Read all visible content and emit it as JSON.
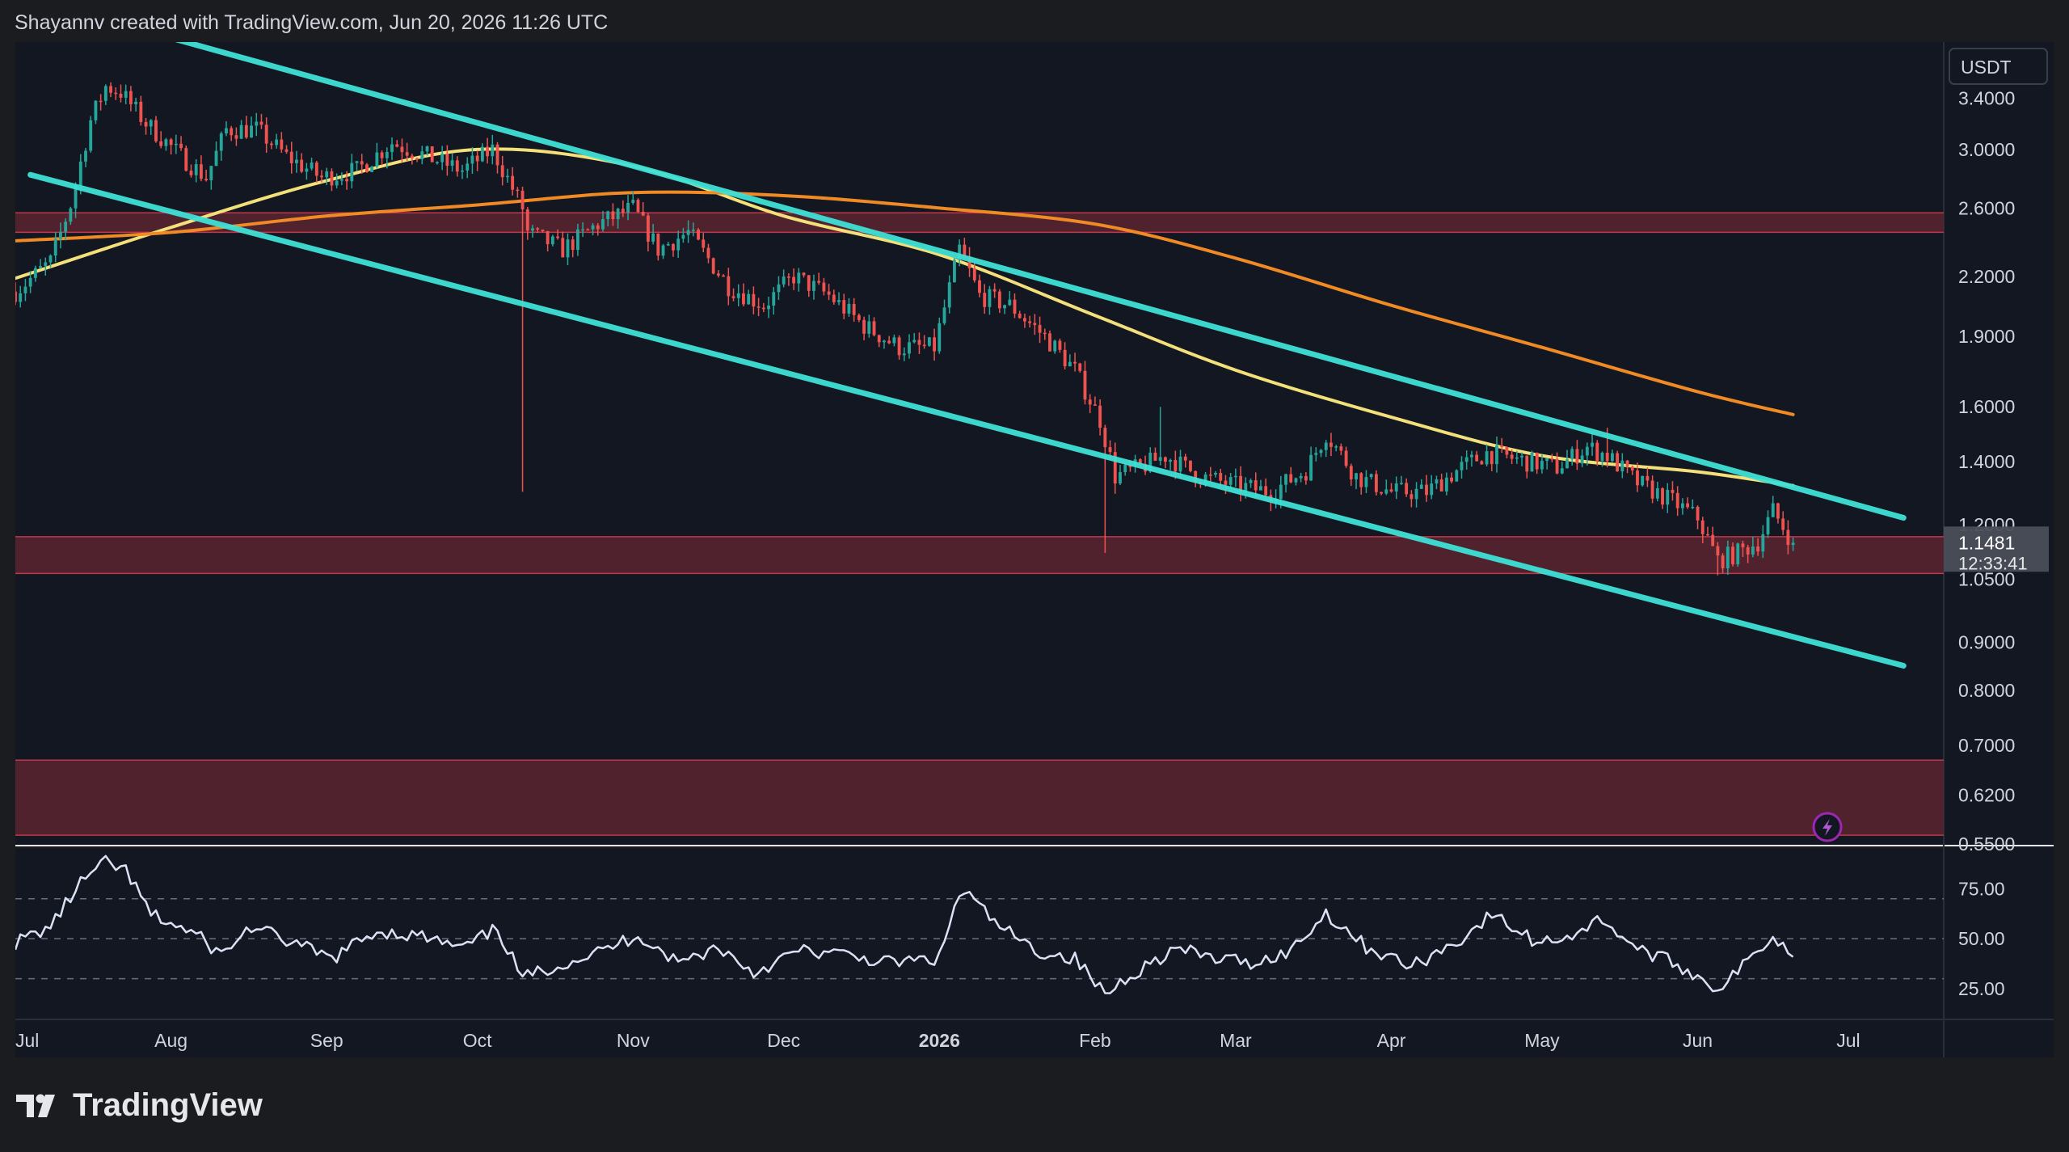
{
  "header": {
    "attribution": "Shayannv created with TradingView.com, Jun 20, 2026 11:26 UTC"
  },
  "branding": {
    "logo_text": "TradingView"
  },
  "colors": {
    "background": "#1b1c20",
    "pane": "#131722",
    "candle_up": "#26a69a",
    "candle_down": "#ef5350",
    "channel": "#3ee0d6",
    "ma_yellow": "#f3e07a",
    "ma_orange": "#f08a24",
    "zone": "#5a2530",
    "rsi_line": "#dbe2f5"
  },
  "chart_data": [
    {
      "type": "candlestick",
      "symbol_quote": "USDT",
      "y_scale": "log",
      "ylim": [
        0.55,
        3.9
      ],
      "y_ticks": [
        3.4,
        3.0,
        2.6,
        2.2,
        1.9,
        1.6,
        1.4,
        1.2,
        1.05,
        0.9,
        0.8,
        0.7,
        0.62,
        0.55
      ],
      "y_tick_labels": [
        "3.4000",
        "3.0000",
        "2.6000",
        "2.2000",
        "1.9000",
        "1.6000",
        "1.4000",
        "1.2000",
        "1.0500",
        "0.9000",
        "0.8000",
        "0.7000",
        "0.6200",
        "0.5500"
      ],
      "x_range": [
        "2025-07-01",
        "2026-07-20"
      ],
      "x_ticks": [
        {
          "date": "2025-07-01",
          "label": "Jul",
          "bold": false
        },
        {
          "date": "2025-08-01",
          "label": "Aug",
          "bold": false
        },
        {
          "date": "2025-09-01",
          "label": "Sep",
          "bold": false
        },
        {
          "date": "2025-10-01",
          "label": "Oct",
          "bold": false
        },
        {
          "date": "2025-11-01",
          "label": "Nov",
          "bold": false
        },
        {
          "date": "2025-12-01",
          "label": "Dec",
          "bold": false
        },
        {
          "date": "2026-01-01",
          "label": "2026",
          "bold": true
        },
        {
          "date": "2026-02-01",
          "label": "Feb",
          "bold": false
        },
        {
          "date": "2026-03-01",
          "label": "Mar",
          "bold": false
        },
        {
          "date": "2026-04-01",
          "label": "Apr",
          "bold": false
        },
        {
          "date": "2026-05-01",
          "label": "May",
          "bold": false
        },
        {
          "date": "2026-06-01",
          "label": "Jun",
          "bold": false
        },
        {
          "date": "2026-07-01",
          "label": "Jul",
          "bold": false
        }
      ],
      "last_price": {
        "label": "1.1481",
        "countdown": "12:33:41",
        "value": 1.1481
      },
      "price_path": [
        [
          "2025-07-01",
          2.12
        ],
        [
          "2025-07-08",
          2.28
        ],
        [
          "2025-07-12",
          2.62
        ],
        [
          "2025-07-16",
          3.22
        ],
        [
          "2025-07-19",
          3.5
        ],
        [
          "2025-07-22",
          3.45
        ],
        [
          "2025-07-27",
          3.2
        ],
        [
          "2025-08-03",
          2.95
        ],
        [
          "2025-08-08",
          2.8
        ],
        [
          "2025-08-12",
          3.15
        ],
        [
          "2025-08-18",
          3.15
        ],
        [
          "2025-08-24",
          2.95
        ],
        [
          "2025-08-31",
          2.8
        ],
        [
          "2025-09-07",
          2.85
        ],
        [
          "2025-09-14",
          3.05
        ],
        [
          "2025-09-21",
          2.95
        ],
        [
          "2025-09-28",
          2.85
        ],
        [
          "2025-10-04",
          3.0
        ],
        [
          "2025-10-10",
          2.6
        ],
        [
          "2025-10-11",
          2.45
        ],
        [
          "2025-10-18",
          2.35
        ],
        [
          "2025-10-25",
          2.5
        ],
        [
          "2025-11-01",
          2.6
        ],
        [
          "2025-11-06",
          2.35
        ],
        [
          "2025-11-12",
          2.45
        ],
        [
          "2025-11-20",
          2.15
        ],
        [
          "2025-11-27",
          2.05
        ],
        [
          "2025-12-03",
          2.2
        ],
        [
          "2025-12-10",
          2.1
        ],
        [
          "2025-12-17",
          1.95
        ],
        [
          "2025-12-24",
          1.85
        ],
        [
          "2025-12-31",
          1.85
        ],
        [
          "2026-01-05",
          2.35
        ],
        [
          "2026-01-09",
          2.1
        ],
        [
          "2026-01-15",
          2.05
        ],
        [
          "2026-01-22",
          1.9
        ],
        [
          "2026-01-28",
          1.75
        ],
        [
          "2026-02-02",
          1.55
        ],
        [
          "2026-02-05",
          1.35
        ],
        [
          "2026-02-10",
          1.38
        ],
        [
          "2026-02-15",
          1.42
        ],
        [
          "2026-02-22",
          1.35
        ],
        [
          "2026-03-01",
          1.32
        ],
        [
          "2026-03-08",
          1.3
        ],
        [
          "2026-03-15",
          1.37
        ],
        [
          "2026-03-19",
          1.5
        ],
        [
          "2026-03-25",
          1.35
        ],
        [
          "2026-04-01",
          1.3
        ],
        [
          "2026-04-08",
          1.3
        ],
        [
          "2026-04-15",
          1.38
        ],
        [
          "2026-04-20",
          1.43
        ],
        [
          "2026-04-28",
          1.4
        ],
        [
          "2026-05-04",
          1.38
        ],
        [
          "2026-05-10",
          1.45
        ],
        [
          "2026-05-14",
          1.42
        ],
        [
          "2026-05-20",
          1.33
        ],
        [
          "2026-05-27",
          1.27
        ],
        [
          "2026-06-01",
          1.22
        ],
        [
          "2026-06-05",
          1.1
        ],
        [
          "2026-06-09",
          1.12
        ],
        [
          "2026-06-13",
          1.15
        ],
        [
          "2026-06-16",
          1.24
        ],
        [
          "2026-06-20",
          1.148
        ]
      ],
      "wicks": [
        {
          "date": "2025-10-10",
          "low": 1.3
        },
        {
          "date": "2026-02-03",
          "low": 1.12
        },
        {
          "date": "2026-02-14",
          "high": 1.6
        },
        {
          "date": "2026-05-14",
          "high": 1.52
        },
        {
          "date": "2026-06-05",
          "low": 1.06
        }
      ],
      "moving_averages": [
        {
          "color": "#f3e07a",
          "points": [
            [
              "2025-07-01",
              2.19
            ],
            [
              "2025-08-01",
              2.48
            ],
            [
              "2025-09-01",
              2.78
            ],
            [
              "2025-10-01",
              3.0
            ],
            [
              "2025-11-01",
              2.88
            ],
            [
              "2025-12-01",
              2.55
            ],
            [
              "2026-01-01",
              2.32
            ],
            [
              "2026-02-01",
              2.0
            ],
            [
              "2026-03-01",
              1.75
            ],
            [
              "2026-04-01",
              1.56
            ],
            [
              "2026-05-01",
              1.42
            ],
            [
              "2026-06-01",
              1.365
            ],
            [
              "2026-06-20",
              1.32
            ]
          ]
        },
        {
          "color": "#f08a24",
          "points": [
            [
              "2025-07-01",
              2.4
            ],
            [
              "2025-08-01",
              2.45
            ],
            [
              "2025-09-01",
              2.55
            ],
            [
              "2025-10-01",
              2.62
            ],
            [
              "2025-11-01",
              2.7
            ],
            [
              "2025-12-01",
              2.68
            ],
            [
              "2026-01-01",
              2.6
            ],
            [
              "2026-02-01",
              2.5
            ],
            [
              "2026-03-01",
              2.3
            ],
            [
              "2026-04-01",
              2.05
            ],
            [
              "2026-05-01",
              1.85
            ],
            [
              "2026-06-01",
              1.66
            ],
            [
              "2026-06-20",
              1.57
            ]
          ]
        }
      ],
      "channel_lines": [
        {
          "from": [
            "2025-07-26",
            4.02
          ],
          "to": [
            "2026-07-12",
            1.22
          ]
        },
        {
          "from": [
            "2025-07-04",
            2.82
          ],
          "to": [
            "2026-07-12",
            0.85
          ]
        }
      ],
      "zones": [
        {
          "from": 2.45,
          "to": 2.57
        },
        {
          "from": 1.065,
          "to": 1.165
        },
        {
          "from": 0.562,
          "to": 0.675
        }
      ]
    },
    {
      "type": "line",
      "indicator": "rsi",
      "ylim": [
        10,
        95
      ],
      "y_ticks": [
        75,
        50,
        25
      ],
      "y_tick_labels": [
        "75.00",
        "50.00",
        "25.00"
      ],
      "levels": [
        70,
        50,
        30
      ],
      "points": [
        [
          "2025-07-01",
          48
        ],
        [
          "2025-07-08",
          56
        ],
        [
          "2025-07-14",
          78
        ],
        [
          "2025-07-19",
          88
        ],
        [
          "2025-07-23",
          84
        ],
        [
          "2025-07-28",
          62
        ],
        [
          "2025-08-06",
          52
        ],
        [
          "2025-08-11",
          42
        ],
        [
          "2025-08-17",
          56
        ],
        [
          "2025-08-25",
          48
        ],
        [
          "2025-09-02",
          40
        ],
        [
          "2025-09-11",
          54
        ],
        [
          "2025-09-20",
          51
        ],
        [
          "2025-09-28",
          45
        ],
        [
          "2025-10-05",
          55
        ],
        [
          "2025-10-10",
          30
        ],
        [
          "2025-10-16",
          36
        ],
        [
          "2025-10-26",
          44
        ],
        [
          "2025-11-02",
          52
        ],
        [
          "2025-11-10",
          38
        ],
        [
          "2025-11-18",
          46
        ],
        [
          "2025-11-25",
          33
        ],
        [
          "2025-12-04",
          44
        ],
        [
          "2025-12-13",
          42
        ],
        [
          "2025-12-22",
          38
        ],
        [
          "2026-01-01",
          40
        ],
        [
          "2026-01-04",
          66
        ],
        [
          "2026-01-06",
          74
        ],
        [
          "2026-01-12",
          58
        ],
        [
          "2026-01-20",
          44
        ],
        [
          "2026-01-28",
          40
        ],
        [
          "2026-02-03",
          22
        ],
        [
          "2026-02-08",
          32
        ],
        [
          "2026-02-17",
          45
        ],
        [
          "2026-02-25",
          40
        ],
        [
          "2026-03-05",
          38
        ],
        [
          "2026-03-12",
          44
        ],
        [
          "2026-03-19",
          63
        ],
        [
          "2026-03-27",
          46
        ],
        [
          "2026-04-05",
          36
        ],
        [
          "2026-04-15",
          50
        ],
        [
          "2026-04-21",
          62
        ],
        [
          "2026-04-30",
          48
        ],
        [
          "2026-05-07",
          52
        ],
        [
          "2026-05-13",
          60
        ],
        [
          "2026-05-20",
          45
        ],
        [
          "2026-05-28",
          37
        ],
        [
          "2026-06-05",
          25
        ],
        [
          "2026-06-10",
          36
        ],
        [
          "2026-06-16",
          52
        ],
        [
          "2026-06-20",
          41
        ]
      ]
    }
  ]
}
